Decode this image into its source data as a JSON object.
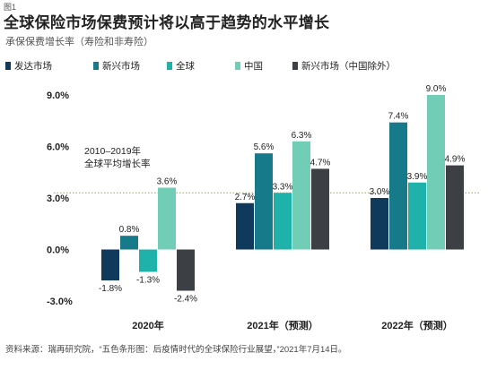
{
  "figure_label": "图1",
  "title": "全球保险市场保费预计将以高于趋势的水平增长",
  "subtitle": "承保保费增长率（寿险和非寿险）",
  "source": "资料来源：瑞再研究院，“五色条形图：后疫情时代的全球保险行业展望，”2021年7月14日。",
  "chart_data": {
    "type": "bar",
    "categories": [
      "2020年",
      "2021年（预测）",
      "2022年（预测）"
    ],
    "series": [
      {
        "name": "发达市场",
        "color": "#0f3a5c",
        "values": [
          -1.8,
          2.7,
          3.0
        ],
        "labels": [
          "-1.8%",
          "2.7%",
          "3.0%"
        ]
      },
      {
        "name": "新兴市场",
        "color": "#177a8a",
        "values": [
          0.8,
          5.6,
          7.4
        ],
        "labels": [
          "0.8%",
          "5.6%",
          "7.4%"
        ]
      },
      {
        "name": "全球",
        "color": "#1fb2aa",
        "values": [
          -1.3,
          3.3,
          3.9
        ],
        "labels": [
          "-1.3%",
          "3.3%",
          "3.9%"
        ]
      },
      {
        "name": "中国",
        "color": "#72cdb7",
        "values": [
          3.6,
          6.3,
          9.0
        ],
        "labels": [
          "3.6%",
          "6.3%",
          "9.0%"
        ]
      },
      {
        "name": "新兴市场（中国除外）",
        "color": "#3c3f44",
        "values": [
          -2.4,
          4.7,
          4.9
        ],
        "labels": [
          "-2.4%",
          "4.7%",
          "4.9%"
        ]
      }
    ],
    "ylim": [
      -3.0,
      9.0
    ],
    "yticks": [
      9.0,
      6.0,
      3.0,
      0.0,
      -3.0
    ],
    "ytick_labels": [
      "9.0%",
      "6.0%",
      "3.0%",
      "0.0%",
      "-3.0%"
    ],
    "reference_line": {
      "value": 3.3,
      "label_lines": [
        "2010–2019年",
        "全球平均增长率"
      ],
      "color": "#9aa83a"
    },
    "grid": false,
    "legend_position": "top"
  }
}
